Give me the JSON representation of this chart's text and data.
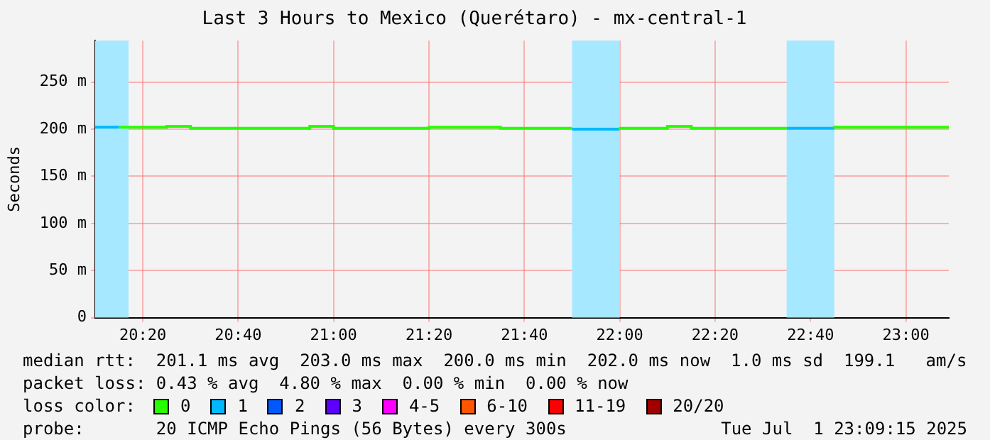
{
  "chart_data": {
    "type": "step",
    "title": "Last 3 Hours to Mexico (Querétaro) - mx-central-1",
    "ylabel": "Seconds",
    "legend_title": "loss color:",
    "legend": "bottom",
    "grid": true,
    "xlim": [
      20.1667,
      23.15
    ],
    "xticks": [
      {
        "value": 20.3333,
        "label": "20:20"
      },
      {
        "value": 20.6667,
        "label": "20:40"
      },
      {
        "value": 21,
        "label": "21:00"
      },
      {
        "value": 21.3333,
        "label": "21:20"
      },
      {
        "value": 21.6667,
        "label": "21:40"
      },
      {
        "value": 22,
        "label": "22:00"
      },
      {
        "value": 22.3333,
        "label": "22:20"
      },
      {
        "value": 22.6667,
        "label": "22:40"
      },
      {
        "value": 23,
        "label": "23:00"
      }
    ],
    "ylim": [
      0,
      294
    ],
    "yticks": [
      0,
      {
        "value": 50,
        "label": "50 m"
      },
      {
        "value": 100,
        "label": "100 m"
      },
      {
        "value": 150,
        "label": "150 m"
      },
      {
        "value": 200,
        "label": "200 m"
      },
      {
        "value": 250,
        "label": "250 m"
      }
    ],
    "bands": [
      {
        "axis": "x",
        "from": 20.1667,
        "to": 20.2833,
        "color": "#a6e8ff"
      },
      {
        "axis": "x",
        "from": 21.8333,
        "to": 22.0,
        "color": "#a6e8ff"
      },
      {
        "axis": "x",
        "from": 22.5833,
        "to": 22.75,
        "color": "#a6e8ff"
      }
    ],
    "series": [
      {
        "name": "0",
        "color": "#26ff00",
        "x": [
          20.25,
          20.3333,
          20.4167,
          20.5,
          20.5833,
          20.6667,
          20.75,
          20.8333,
          20.9167,
          21.0,
          21.0833,
          21.1667,
          21.25,
          21.3333,
          21.4167,
          21.5,
          21.5833,
          21.6667,
          21.75,
          21.8333,
          21.9,
          22.0,
          22.0833,
          22.1667,
          22.25,
          22.3333,
          22.4167,
          22.5,
          22.5833,
          22.65,
          22.75,
          22.8333,
          22.9167,
          23.0,
          23.0833,
          23.15
        ],
        "values": [
          202,
          202,
          202,
          203,
          201,
          201,
          201,
          201,
          201,
          203,
          201,
          201,
          201,
          201,
          202,
          202,
          202,
          201,
          201,
          201,
          null,
          202,
          201,
          201,
          203,
          201,
          201,
          201,
          201,
          null,
          201,
          202,
          202,
          202,
          202,
          202
        ]
      },
      {
        "name": "1",
        "color": "#00b8ff",
        "x": [
          20.1667,
          20.25,
          20.3,
          21.8333,
          21.9167,
          22.0,
          22.05,
          22.5833,
          22.6667,
          22.75
        ],
        "values": [
          202,
          202,
          null,
          200,
          200,
          200,
          null,
          201,
          201,
          201
        ]
      },
      {
        "name": "2",
        "color": "#0059ff"
      },
      {
        "name": "3",
        "color": "#5e00ff"
      },
      {
        "name": "4-5",
        "color": "#ff00ff"
      },
      {
        "name": "6-10",
        "color": "#ff5500"
      },
      {
        "name": "11-19",
        "color": "#ff0000"
      },
      {
        "name": "20/20",
        "color": "#a10000"
      }
    ],
    "annotations": [
      "median rtt:  201.1 ms avg  203.0 ms max  200.0 ms min  202.0 ms now  1.0 ms sd  199.1   am/s",
      "packet loss: 0.43 % avg  4.80 % max  0.00 % min  0.00 % now",
      "probe:       20 ICMP Echo Pings (56 Bytes) every 300s",
      "Tue Jul  1 23:09:15 2025"
    ]
  }
}
